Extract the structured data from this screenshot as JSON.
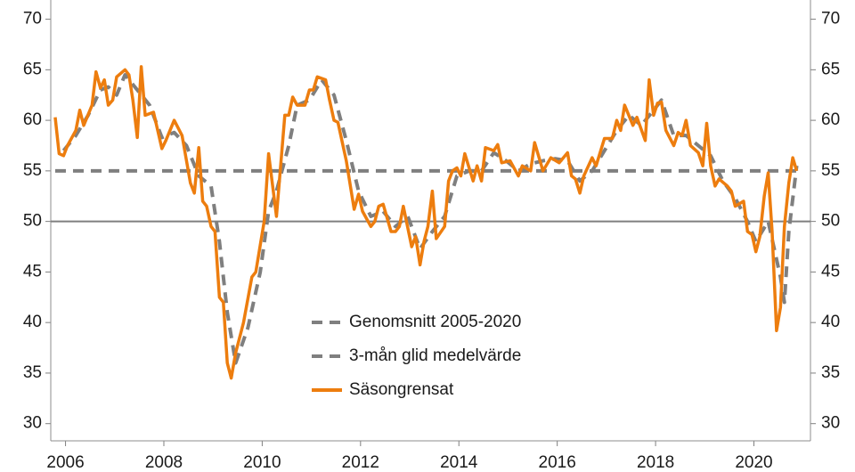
{
  "chart_data": {
    "type": "line",
    "xlim": [
      2005.7,
      2021.15
    ],
    "xticks": [
      2006,
      2008,
      2010,
      2012,
      2014,
      2016,
      2018,
      2020
    ],
    "ylim": [
      28.3,
      71.9
    ],
    "yticks": [
      30,
      35,
      40,
      45,
      50,
      55,
      60,
      65,
      70
    ],
    "y2lim": [
      28.3,
      71.9
    ],
    "y2ticks": [
      30,
      35,
      40,
      45,
      50,
      55,
      60,
      65,
      70
    ],
    "reference_line": 50,
    "legend_position": "center",
    "series": [
      {
        "name": "Genomsnitt 2005-2020",
        "color": "#7f7f7f",
        "dashed": true,
        "x": [
          2005.79,
          2020.87
        ],
        "values": [
          55,
          55
        ]
      },
      {
        "name": "3-mån glid medelvärde",
        "color": "#7f7f7f",
        "dashed": true,
        "x": [
          2005.96,
          2006.21,
          2006.46,
          2006.71,
          2006.87,
          2007.04,
          2007.21,
          2007.46,
          2007.71,
          2007.96,
          2008.21,
          2008.46,
          2008.71,
          2008.96,
          2009.13,
          2009.29,
          2009.46,
          2009.71,
          2009.96,
          2010.13,
          2010.29,
          2010.54,
          2010.71,
          2010.96,
          2011.21,
          2011.46,
          2011.71,
          2011.96,
          2012.21,
          2012.46,
          2012.71,
          2012.96,
          2013.21,
          2013.46,
          2013.71,
          2013.96,
          2014.21,
          2014.46,
          2014.71,
          2014.96,
          2015.21,
          2015.46,
          2015.71,
          2015.96,
          2016.21,
          2016.46,
          2016.71,
          2016.96,
          2017.21,
          2017.46,
          2017.71,
          2017.96,
          2018.12,
          2018.37,
          2018.62,
          2018.87,
          2019.12,
          2019.37,
          2019.62,
          2019.87,
          2020.04,
          2020.29,
          2020.54,
          2020.62,
          2020.71,
          2020.87
        ],
        "values": [
          57.0,
          58.5,
          60.5,
          63.0,
          63.3,
          62.5,
          64.5,
          63.0,
          61.5,
          58.3,
          58.8,
          57.5,
          54.5,
          53.5,
          48.0,
          41.0,
          36.0,
          39.5,
          45.0,
          51.0,
          53.0,
          57.5,
          61.5,
          62.0,
          64.0,
          62.5,
          58.0,
          53.0,
          50.5,
          51.0,
          49.5,
          50.5,
          47.3,
          49.0,
          50.5,
          54.5,
          55.0,
          55.0,
          56.8,
          56.0,
          55.0,
          55.7,
          56.0,
          56.2,
          56.0,
          54.0,
          55.0,
          57.0,
          59.0,
          60.5,
          59.5,
          61.0,
          62.0,
          58.5,
          58.5,
          57.5,
          56.5,
          54.0,
          52.3,
          50.0,
          48.0,
          50.0,
          44.5,
          42.0,
          49.0,
          55.5
        ]
      },
      {
        "name": "Säsongrensat",
        "color": "#ed7d0e",
        "dashed": false,
        "x": [
          2005.79,
          2005.87,
          2005.96,
          2006.04,
          2006.21,
          2006.29,
          2006.37,
          2006.54,
          2006.62,
          2006.71,
          2006.79,
          2006.87,
          2006.96,
          2007.04,
          2007.21,
          2007.29,
          2007.37,
          2007.46,
          2007.54,
          2007.62,
          2007.79,
          2007.96,
          2008.04,
          2008.21,
          2008.37,
          2008.54,
          2008.62,
          2008.71,
          2008.79,
          2008.87,
          2008.96,
          2009.04,
          2009.13,
          2009.21,
          2009.29,
          2009.37,
          2009.46,
          2009.62,
          2009.79,
          2009.87,
          2010.04,
          2010.13,
          2010.29,
          2010.46,
          2010.54,
          2010.62,
          2010.71,
          2010.87,
          2010.96,
          2011.04,
          2011.12,
          2011.29,
          2011.37,
          2011.46,
          2011.54,
          2011.71,
          2011.87,
          2011.96,
          2012.04,
          2012.21,
          2012.29,
          2012.37,
          2012.46,
          2012.62,
          2012.71,
          2012.79,
          2012.87,
          2013.04,
          2013.12,
          2013.21,
          2013.29,
          2013.37,
          2013.46,
          2013.54,
          2013.71,
          2013.79,
          2013.87,
          2013.96,
          2014.04,
          2014.12,
          2014.29,
          2014.37,
          2014.46,
          2014.54,
          2014.71,
          2014.79,
          2014.87,
          2015.04,
          2015.21,
          2015.29,
          2015.46,
          2015.54,
          2015.71,
          2015.87,
          2016.04,
          2016.21,
          2016.29,
          2016.37,
          2016.46,
          2016.54,
          2016.71,
          2016.79,
          2016.96,
          2017.12,
          2017.21,
          2017.29,
          2017.37,
          2017.54,
          2017.62,
          2017.79,
          2017.87,
          2017.96,
          2018.04,
          2018.12,
          2018.21,
          2018.37,
          2018.46,
          2018.54,
          2018.62,
          2018.71,
          2018.87,
          2018.96,
          2019.04,
          2019.12,
          2019.21,
          2019.29,
          2019.46,
          2019.54,
          2019.62,
          2019.79,
          2019.87,
          2019.96,
          2020.04,
          2020.12,
          2020.21,
          2020.29,
          2020.37,
          2020.46,
          2020.54,
          2020.62,
          2020.71,
          2020.79,
          2020.87
        ],
        "values": [
          60.3,
          56.7,
          56.5,
          57.5,
          59.0,
          61.0,
          59.5,
          61.5,
          64.8,
          63.2,
          64.0,
          61.5,
          62.0,
          64.3,
          65.0,
          64.5,
          62.0,
          58.3,
          65.3,
          60.5,
          60.8,
          57.2,
          58.0,
          60.0,
          58.5,
          53.8,
          52.8,
          57.3,
          52.0,
          51.5,
          49.5,
          49.0,
          42.5,
          42.0,
          36.0,
          34.5,
          37.0,
          40.0,
          44.5,
          45.0,
          50.0,
          56.7,
          50.5,
          60.5,
          60.5,
          62.3,
          61.5,
          61.5,
          63.0,
          63.0,
          64.3,
          64.0,
          62.0,
          60.0,
          59.8,
          56.0,
          51.2,
          52.7,
          51.0,
          49.5,
          50.0,
          51.5,
          51.7,
          49.0,
          49.0,
          49.5,
          51.5,
          47.5,
          48.5,
          45.7,
          48.0,
          49.5,
          53.0,
          48.3,
          49.5,
          54.0,
          55.0,
          55.3,
          54.5,
          56.7,
          54.0,
          55.5,
          54.0,
          57.3,
          57.0,
          57.6,
          55.8,
          56.0,
          54.5,
          55.5,
          55.0,
          57.8,
          55.0,
          56.3,
          55.8,
          56.8,
          54.5,
          54.2,
          52.8,
          54.5,
          56.3,
          55.5,
          58.2,
          58.2,
          60.0,
          59.0,
          61.5,
          59.5,
          60.3,
          58.0,
          64.0,
          60.5,
          61.7,
          61.8,
          59.0,
          57.5,
          58.8,
          58.5,
          60.0,
          57.5,
          56.8,
          55.5,
          59.7,
          55.5,
          53.5,
          54.2,
          53.5,
          53.0,
          51.5,
          52.0,
          49.0,
          48.7,
          47.0,
          48.5,
          52.5,
          54.8,
          49.0,
          39.2,
          41.5,
          49.5,
          53.8,
          56.3,
          55.0
        ]
      }
    ]
  }
}
